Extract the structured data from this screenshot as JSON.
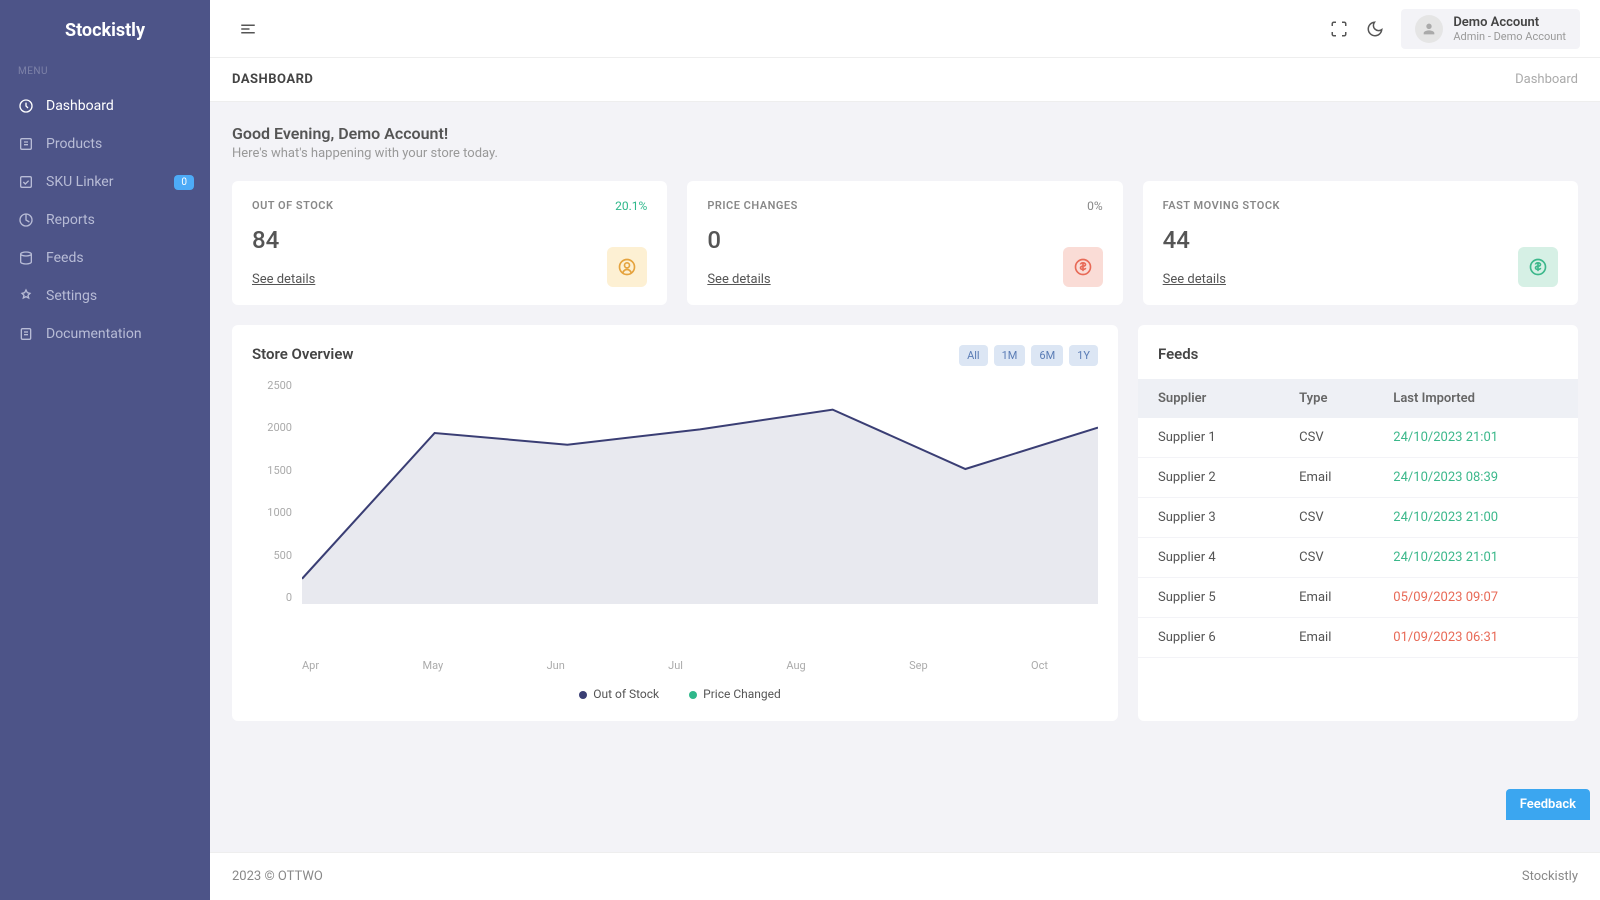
{
  "app": {
    "name": "Stockistly"
  },
  "sidebar": {
    "menuLabel": "MENU",
    "items": [
      {
        "label": "Dashboard",
        "active": true
      },
      {
        "label": "Products"
      },
      {
        "label": "SKU Linker",
        "badge": "0"
      },
      {
        "label": "Reports"
      },
      {
        "label": "Feeds"
      },
      {
        "label": "Settings"
      },
      {
        "label": "Documentation"
      }
    ]
  },
  "user": {
    "name": "Demo Account",
    "role": "Admin - Demo Account"
  },
  "header": {
    "title": "DASHBOARD",
    "breadcrumb": "Dashboard"
  },
  "welcome": {
    "greeting": "Good Evening, Demo Account!",
    "subtitle": "Here's what's happening with your store today."
  },
  "cards": [
    {
      "title": "OUT OF STOCK",
      "pct": "20.1%",
      "pctColor": "#2fb88b",
      "value": "84",
      "link": "See details",
      "iconBg": "#fdf0d3",
      "iconStroke": "#e5a33e"
    },
    {
      "title": "PRICE CHANGES",
      "pct": "0%",
      "pctColor": "#888",
      "value": "0",
      "link": "See details",
      "iconBg": "#fadcd6",
      "iconStroke": "#e86a57"
    },
    {
      "title": "FAST MOVING STOCK",
      "pct": "",
      "pctColor": "#888",
      "value": "44",
      "link": "See details",
      "iconBg": "#d6f0e5",
      "iconStroke": "#3cb88b"
    }
  ],
  "chart": {
    "title": "Store Overview",
    "filters": [
      "All",
      "1M",
      "6M",
      "1Y"
    ],
    "yTicks": [
      "2500",
      "2000",
      "1500",
      "1000",
      "500",
      "0"
    ],
    "xLabels": [
      "Apr",
      "May",
      "Jun",
      "Jul",
      "Aug",
      "Sep",
      "Oct"
    ],
    "series": [
      {
        "name": "Out of Stock",
        "color": "#3a3e74",
        "values": [
          280,
          1900,
          1770,
          1940,
          2160,
          1500,
          1960
        ],
        "fill": "#e8e9ef"
      },
      {
        "name": "Price Changed",
        "color": "#2fb88b"
      }
    ],
    "ymax": 2500,
    "lineColor": "#3a3e74",
    "fillColor": "#e8e9ef"
  },
  "feeds": {
    "title": "Feeds",
    "headers": {
      "supplier": "Supplier",
      "type": "Type",
      "date": "Last Imported"
    },
    "rows": [
      {
        "supplier": "Supplier 1",
        "type": "CSV",
        "date": "24/10/2023 21:01",
        "dateColor": "#3cb88b"
      },
      {
        "supplier": "Supplier 2",
        "type": "Email",
        "date": "24/10/2023 08:39",
        "dateColor": "#3cb88b"
      },
      {
        "supplier": "Supplier 3",
        "type": "CSV",
        "date": "24/10/2023 21:00",
        "dateColor": "#3cb88b"
      },
      {
        "supplier": "Supplier 4",
        "type": "CSV",
        "date": "24/10/2023 21:01",
        "dateColor": "#3cb88b"
      },
      {
        "supplier": "Supplier 5",
        "type": "Email",
        "date": "05/09/2023 09:07",
        "dateColor": "#e86a57"
      },
      {
        "supplier": "Supplier 6",
        "type": "Email",
        "date": "01/09/2023 06:31",
        "dateColor": "#e86a57"
      }
    ]
  },
  "footer": {
    "left": "2023 © OTTWO",
    "right": "Stockistly"
  },
  "feedback": {
    "label": "Feedback"
  }
}
